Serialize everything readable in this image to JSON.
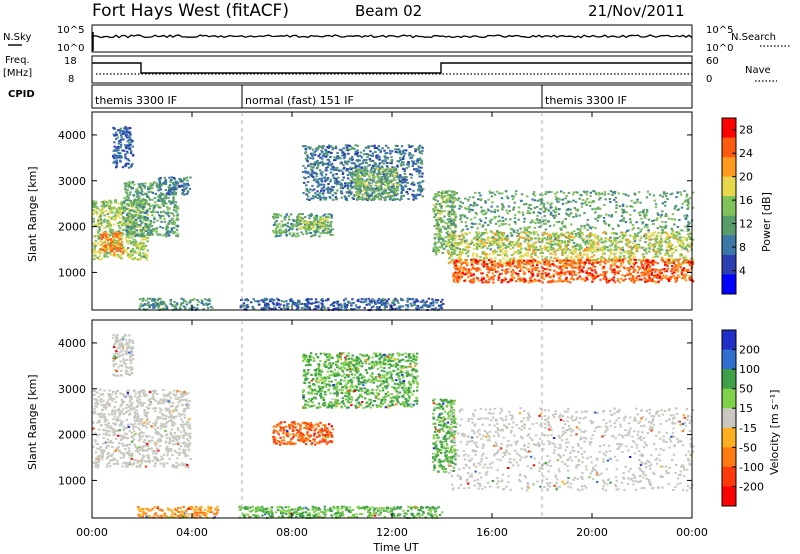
{
  "header": {
    "station": "Fort Hays West (fitACF)",
    "beam": "Beam 02",
    "date": "21/Nov/2011"
  },
  "left_labels": {
    "nsky": "N.Sky",
    "freq": "Freq.",
    "freq_unit": "[MHz]",
    "cpid": "CPID"
  },
  "right_labels": {
    "nsearch": "N.Search",
    "nave": "Nave"
  },
  "noise_axis": {
    "top": "10^5",
    "bottom": "10^0"
  },
  "freq_axis": {
    "top": "18",
    "bottom": "8"
  },
  "nave_axis": {
    "top": "60",
    "bottom": "0"
  },
  "cpid_segments": [
    {
      "label": "themis 3300 IF",
      "start_hour": 0
    },
    {
      "label": "normal (fast) 151 IF",
      "start_hour": 6
    },
    {
      "label": "themis 3300 IF",
      "start_hour": 18
    }
  ],
  "colors": {
    "power": [
      "#0000ff",
      "#2b3fb0",
      "#3a78a8",
      "#5a9d6d",
      "#7fc25a",
      "#e6d84a",
      "#ff9a1e",
      "#ff5a10",
      "#ff0000"
    ],
    "velocity": [
      "#1f2fc8",
      "#2f6fcf",
      "#3fa04a",
      "#7fd14a",
      "#c8c8c0",
      "#c8c8c0",
      "#ffb020",
      "#ff7a10",
      "#ff3a0a",
      "#ff0000"
    ],
    "grey": "#c8c8c0"
  },
  "chart_data": [
    {
      "type": "heatmap",
      "name": "power",
      "ylabel": "Slant Range [km]",
      "ylim": [
        180,
        4500
      ],
      "yticks": [
        1000,
        2000,
        3000,
        4000
      ],
      "xlim": [
        0,
        24
      ],
      "colorbar": {
        "label": "Power [dB]",
        "ticks": [
          "4",
          "8",
          "12",
          "16",
          "20",
          "24",
          "28"
        ],
        "range": [
          0,
          30
        ]
      },
      "regions": [
        {
          "t0": 0.0,
          "t1": 2.2,
          "r0": 1300,
          "r1": 2600,
          "level": 16
        },
        {
          "t0": 0.3,
          "t1": 1.2,
          "r0": 1400,
          "r1": 1900,
          "level": 24
        },
        {
          "t0": 1.2,
          "t1": 3.4,
          "r0": 1800,
          "r1": 3000,
          "level": 12
        },
        {
          "t0": 2.6,
          "t1": 3.9,
          "r0": 2700,
          "r1": 3100,
          "level": 8
        },
        {
          "t0": 0.8,
          "t1": 1.6,
          "r0": 3300,
          "r1": 4200,
          "level": 6
        },
        {
          "t0": 1.8,
          "t1": 4.8,
          "r0": 200,
          "r1": 450,
          "level": 10
        },
        {
          "t0": 7.2,
          "t1": 9.6,
          "r0": 1800,
          "r1": 2300,
          "level": 12
        },
        {
          "t0": 8.2,
          "t1": 9.4,
          "r0": 1950,
          "r1": 2200,
          "level": 16
        },
        {
          "t0": 8.4,
          "t1": 13.2,
          "r0": 2600,
          "r1": 3800,
          "level": 8
        },
        {
          "t0": 10.4,
          "t1": 12.2,
          "r0": 2600,
          "r1": 3300,
          "level": 14
        },
        {
          "t0": 13.6,
          "t1": 14.5,
          "r0": 1400,
          "r1": 2800,
          "level": 14
        },
        {
          "t0": 14.2,
          "t1": 24.0,
          "r0": 1500,
          "r1": 2800,
          "level": 12
        },
        {
          "t0": 14.2,
          "t1": 24.0,
          "r0": 1200,
          "r1": 1900,
          "level": 18
        },
        {
          "t0": 14.4,
          "t1": 24.0,
          "r0": 800,
          "r1": 1300,
          "level": 26
        },
        {
          "t0": 5.8,
          "t1": 14.0,
          "r0": 200,
          "r1": 450,
          "level": 6
        }
      ]
    },
    {
      "type": "heatmap",
      "name": "velocity",
      "ylabel": "Slant Range [km]",
      "ylim": [
        180,
        4500
      ],
      "yticks": [
        1000,
        2000,
        3000,
        4000
      ],
      "xlim": [
        0,
        24
      ],
      "xlabel": "Time UT",
      "xticks": [
        "00:00",
        "04:00",
        "08:00",
        "12:00",
        "16:00",
        "20:00",
        "00:00"
      ],
      "colorbar": {
        "label": "Velocity [m s⁻¹]",
        "ticks": [
          "200",
          "100",
          "50",
          "15",
          "-15",
          "-50",
          "-100",
          "-200"
        ]
      },
      "regions": [
        {
          "t0": 0.0,
          "t1": 3.9,
          "r0": 1300,
          "r1": 3000,
          "v": 0
        },
        {
          "t0": 0.8,
          "t1": 1.6,
          "r0": 3300,
          "r1": 4200,
          "v": 0
        },
        {
          "t0": 1.8,
          "t1": 5.0,
          "r0": 200,
          "r1": 450,
          "v": -60
        },
        {
          "t0": 7.2,
          "t1": 9.6,
          "r0": 1800,
          "r1": 2300,
          "v": -150
        },
        {
          "t0": 8.4,
          "t1": 13.0,
          "r0": 2600,
          "r1": 3800,
          "v": 30
        },
        {
          "t0": 13.6,
          "t1": 14.5,
          "r0": 1200,
          "r1": 2800,
          "v": 60
        },
        {
          "t0": 14.2,
          "t1": 24.0,
          "r0": 800,
          "r1": 2600,
          "v": 0
        },
        {
          "t0": 5.8,
          "t1": 14.0,
          "r0": 200,
          "r1": 450,
          "v": 40
        }
      ]
    }
  ]
}
